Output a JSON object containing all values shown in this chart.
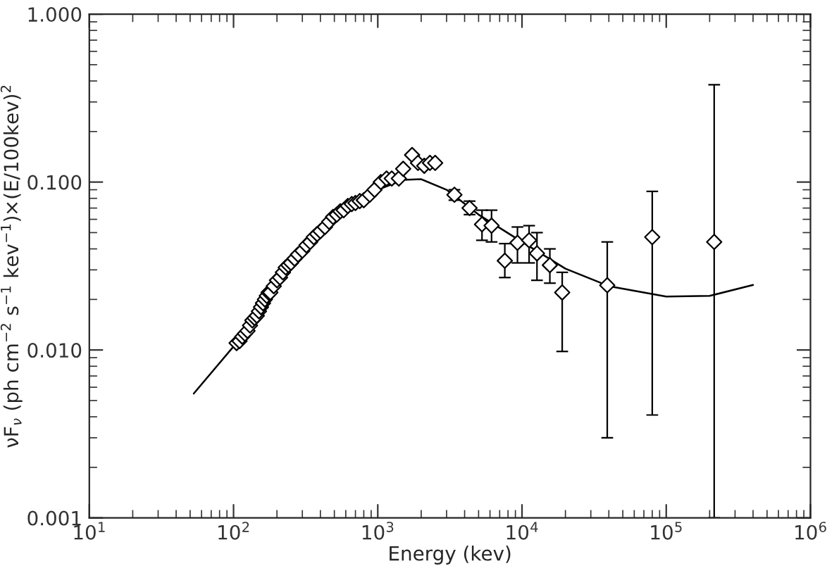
{
  "chart_data": {
    "type": "scatter",
    "xlabel": "Energy (kev)",
    "ylabel": "νF$_{ν}$ (ph cm$^{−2}$ s$^{−1}$ kev$^{−1}$)×(E/100kev)$^{2}$",
    "log": "xy",
    "grid": false,
    "xlim": [
      10,
      1000000
    ],
    "ylim": [
      0.001,
      1.0
    ],
    "xticks": [
      {
        "value": 10,
        "label": "10$^{1}$"
      },
      {
        "value": 100,
        "label": "10$^{2}$"
      },
      {
        "value": 1000,
        "label": "10$^{3}$"
      },
      {
        "value": 10000,
        "label": "10$^{4}$"
      },
      {
        "value": 100000,
        "label": "10$^{5}$"
      },
      {
        "value": 1000000,
        "label": "10$^{6}$"
      }
    ],
    "yticks": [
      {
        "value": 0.001,
        "label": "0.001"
      },
      {
        "value": 0.01,
        "label": "0.010"
      },
      {
        "value": 0.1,
        "label": "0.100"
      },
      {
        "value": 1.0,
        "label": "1.000"
      }
    ],
    "series": [
      {
        "marker": "diamond",
        "color": "#000000",
        "x": [
          105,
          110,
          115,
          120,
          125,
          130,
          135,
          140,
          145,
          150,
          155,
          160,
          165,
          170,
          175,
          180,
          190,
          200,
          210,
          220,
          230,
          240,
          250,
          265,
          280,
          300,
          320,
          340,
          360,
          380,
          400,
          430,
          460,
          490,
          520,
          550,
          580,
          620,
          660,
          700,
          750,
          800,
          880,
          950,
          1050,
          1150,
          1250,
          1400,
          1500,
          1730,
          1900,
          2100,
          2300,
          2500,
          3400,
          4330,
          5280,
          6150,
          7600,
          9300,
          11200,
          12700,
          15600,
          19000,
          39000,
          80000,
          215000
        ],
        "values": [
          0.011,
          0.0113,
          0.012,
          0.0125,
          0.013,
          0.014,
          0.015,
          0.0155,
          0.016,
          0.017,
          0.018,
          0.019,
          0.02,
          0.021,
          0.022,
          0.022,
          0.024,
          0.026,
          0.027,
          0.029,
          0.031,
          0.032,
          0.033,
          0.035,
          0.037,
          0.039,
          0.042,
          0.044,
          0.047,
          0.049,
          0.051,
          0.054,
          0.058,
          0.062,
          0.064,
          0.067,
          0.068,
          0.072,
          0.074,
          0.075,
          0.077,
          0.078,
          0.084,
          0.09,
          0.1,
          0.105,
          0.105,
          0.105,
          0.12,
          0.145,
          0.13,
          0.125,
          0.13,
          0.13,
          0.084,
          0.07,
          0.056,
          0.055,
          0.034,
          0.0435,
          0.045,
          0.0376,
          0.032,
          0.022,
          0.0243,
          0.047,
          0.044
        ],
        "errors": [
          null,
          null,
          null,
          null,
          null,
          null,
          null,
          null,
          null,
          null,
          null,
          null,
          null,
          null,
          null,
          null,
          null,
          null,
          null,
          null,
          null,
          null,
          null,
          null,
          null,
          null,
          null,
          null,
          null,
          null,
          null,
          null,
          null,
          null,
          null,
          null,
          null,
          null,
          null,
          null,
          null,
          null,
          null,
          null,
          null,
          null,
          null,
          null,
          null,
          null,
          null,
          null,
          null,
          null,
          [
            0.078,
            0.09
          ],
          [
            0.064,
            0.077
          ],
          [
            0.045,
            0.068
          ],
          [
            0.044,
            0.068
          ],
          [
            0.027,
            0.043
          ],
          [
            0.033,
            0.054
          ],
          [
            0.033,
            0.055
          ],
          [
            0.026,
            0.05
          ],
          [
            0.025,
            0.04
          ],
          [
            0.0098,
            0.029
          ],
          [
            0.003,
            0.044
          ],
          [
            0.0041,
            0.088
          ],
          [
            0.001,
            0.38
          ]
        ]
      },
      {
        "type": "line",
        "color": "#000000",
        "x": [
          53,
          100,
          200,
          400,
          700,
          1000,
          1500,
          2000,
          3000,
          5000,
          10000,
          20000,
          40000,
          100000,
          200000,
          400000
        ],
        "values": [
          0.0055,
          0.0105,
          0.024,
          0.048,
          0.074,
          0.09,
          0.103,
          0.104,
          0.09,
          0.064,
          0.044,
          0.0305,
          0.024,
          0.0208,
          0.021,
          0.0244
        ]
      }
    ]
  }
}
